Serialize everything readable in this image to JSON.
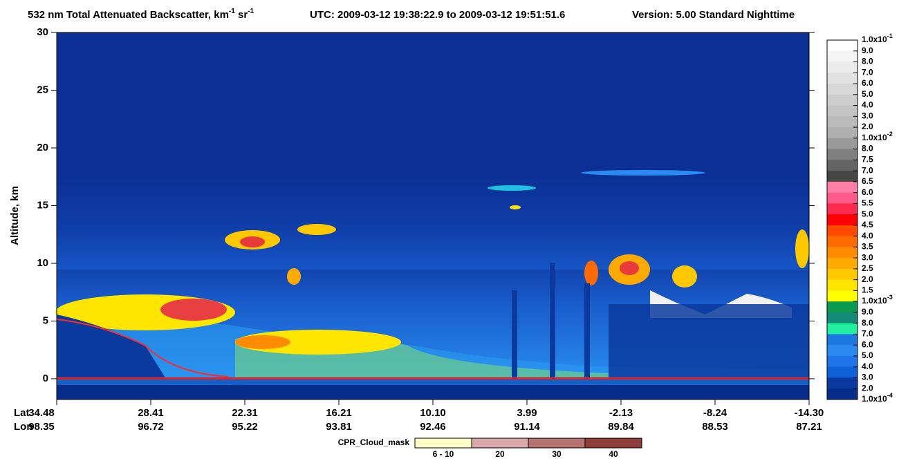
{
  "chart_data": {
    "type": "curtain",
    "title": {
      "main": "532 nm Total Attenuated Backscatter, km",
      "exp1": "-1",
      "unit2": " sr",
      "exp2": "-1",
      "utc": "UTC:  2009-03-12 19:38:22.9  to  2009-03-12 19:51:51.6",
      "version": "Version: 5.00  Standard  Nighttime"
    },
    "y_label": "Altitude, km",
    "ylim": [
      -1.8,
      30
    ],
    "yticks": [
      0,
      5,
      10,
      15,
      20,
      25,
      30
    ],
    "x_rows": {
      "lat_label": "Lat",
      "lon_label": "Lon"
    },
    "lat": [
      "34.48",
      "28.41",
      "22.31",
      "16.21",
      "10.10",
      "3.99",
      "-2.13",
      "-8.24",
      "-14.30"
    ],
    "lon": [
      "98.35",
      "96.72",
      "95.22",
      "93.81",
      "92.46",
      "91.14",
      "89.84",
      "88.53",
      "87.21"
    ],
    "colorbar": {
      "labels": [
        {
          "base": "1.0x10",
          "exp": "-1"
        },
        "9.0",
        "8.0",
        "7.0",
        "6.0",
        "5.0",
        "4.0",
        "3.0",
        "2.0",
        {
          "base": "1.0x10",
          "exp": "-2"
        },
        "8.0",
        "7.5",
        "7.0",
        "6.5",
        "6.0",
        "5.5",
        "5.0",
        "4.5",
        "4.0",
        "3.5",
        "3.0",
        "2.5",
        "2.0",
        "1.5",
        {
          "base": "1.0x10",
          "exp": "-3"
        },
        "9.0",
        "8.0",
        "7.0",
        "6.0",
        "5.0",
        "4.0",
        "3.0",
        "2.0",
        {
          "base": "1.0x10",
          "exp": "-4"
        }
      ],
      "colors": [
        "#ffffff",
        "#f5f5f5",
        "#ececec",
        "#e2e2e2",
        "#d8d8d8",
        "#cecece",
        "#c4c4c4",
        "#bababa",
        "#b0b0b0",
        "#9a9a9a",
        "#808080",
        "#646464",
        "#464646",
        "#ff7fa8",
        "#ff5a8a",
        "#ff2a4e",
        "#ff0000",
        "#ff4a00",
        "#ff6a00",
        "#ff8c00",
        "#ffaa00",
        "#ffc800",
        "#ffe600",
        "#ffff00",
        "#0a9b50",
        "#128c78",
        "#20f0a0",
        "#1a78e0",
        "#2a8af0",
        "#1e74e8",
        "#1060d8",
        "#0a3a9e",
        "#062d8c"
      ]
    },
    "cpr_legend": {
      "title": "CPR_Cloud_mask",
      "labels": [
        "6 - 10",
        "20",
        "30",
        "40"
      ],
      "colors": [
        "#fffcc8",
        "#d9a8a8",
        "#b57070",
        "#8e3c3c"
      ]
    }
  }
}
